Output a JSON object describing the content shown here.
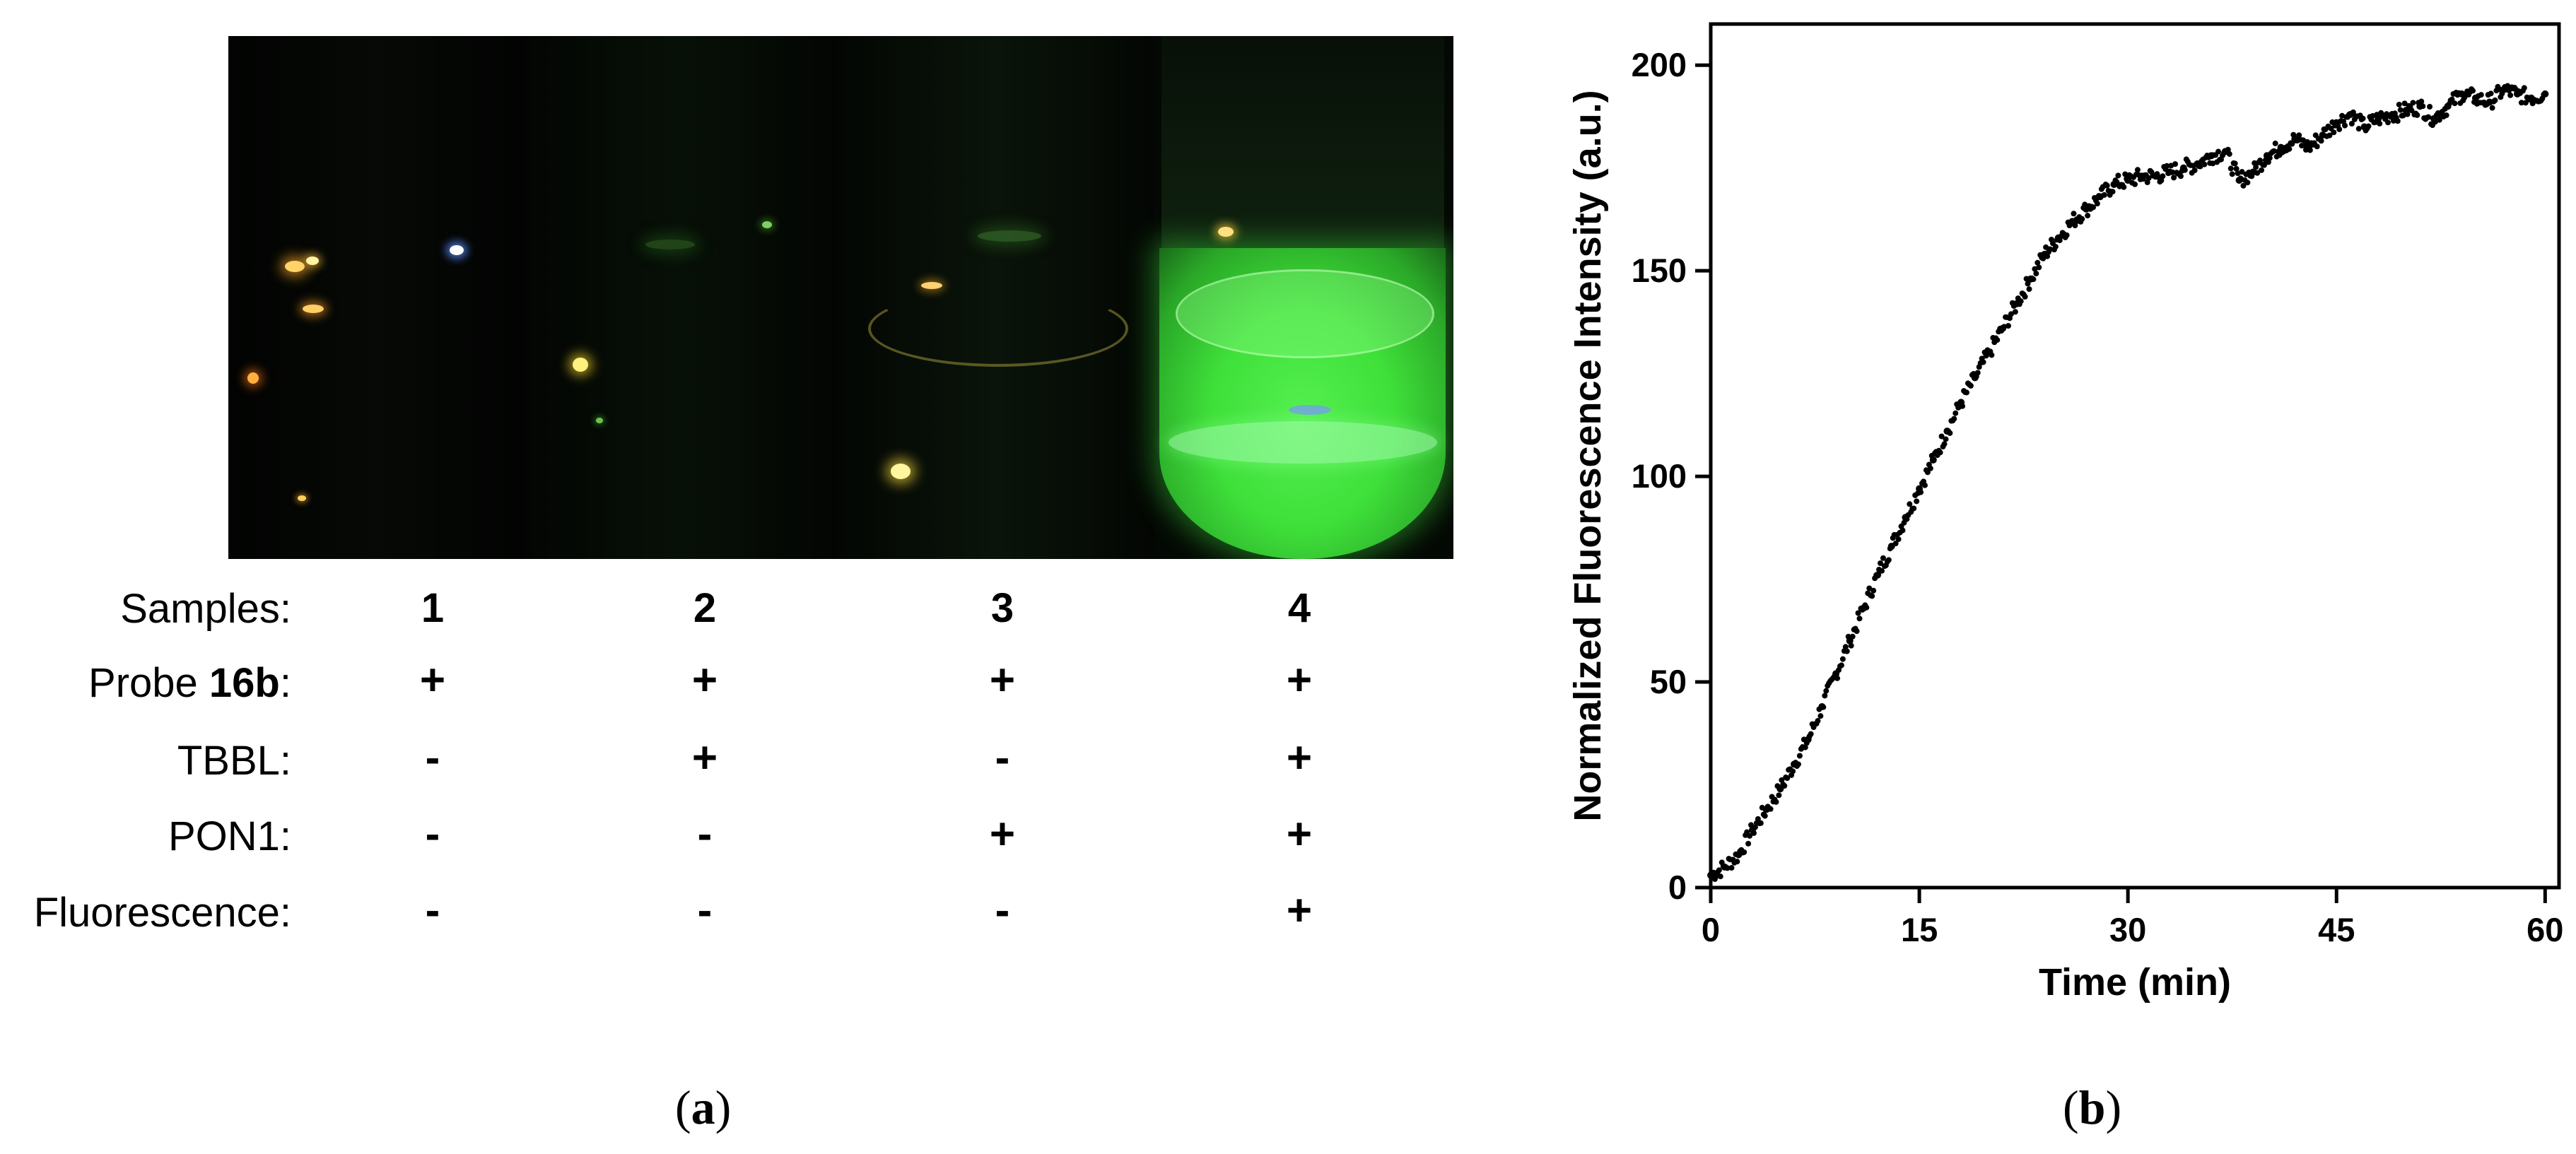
{
  "panel_a": {
    "table": {
      "rows": [
        {
          "label": "Samples:",
          "label_parts": [
            "Samples:"
          ],
          "values": [
            "1",
            "2",
            "3",
            "4"
          ]
        },
        {
          "label": "Probe 16b:",
          "label_parts": [
            "Probe ",
            "16b",
            ":"
          ],
          "values": [
            "+",
            "+",
            "+",
            "+"
          ]
        },
        {
          "label": "TBBL:",
          "label_parts": [
            "TBBL:"
          ],
          "values": [
            "-",
            "+",
            "-",
            "+"
          ]
        },
        {
          "label": "PON1:",
          "label_parts": [
            "PON1:"
          ],
          "values": [
            "-",
            "-",
            "+",
            "+"
          ]
        },
        {
          "label": "Fluorescence:",
          "label_parts": [
            "Fluorescence:"
          ],
          "values": [
            "-",
            "-",
            "-",
            "+"
          ]
        }
      ]
    },
    "caption": {
      "open": "(",
      "letter": "a",
      "close": ")"
    },
    "photo_colors": {
      "background": "#030603",
      "fluorescence": "#3fe03a"
    }
  },
  "panel_b": {
    "caption": {
      "open": "(",
      "letter": "b",
      "close": ")"
    }
  },
  "chart_data": {
    "type": "scatter",
    "title": "",
    "xlabel": "Time (min)",
    "ylabel": "Normalized Fluorescence Intensity (a.u.)",
    "xlim": [
      0,
      61
    ],
    "ylim": [
      0,
      210
    ],
    "xticks": [
      0,
      15,
      30,
      45,
      60
    ],
    "yticks": [
      0,
      50,
      100,
      150,
      200
    ],
    "grid": false,
    "series": [
      {
        "color": "#000000",
        "x": [
          0,
          1,
          2,
          3,
          4,
          5,
          6,
          7,
          8,
          9,
          10,
          11,
          12,
          13,
          14,
          15,
          16,
          17,
          18,
          19,
          20,
          21,
          22,
          23,
          24,
          25,
          26,
          27,
          28,
          29,
          30,
          31,
          32,
          33,
          34,
          35,
          36,
          37,
          38,
          39,
          40,
          41,
          42,
          43,
          44,
          45,
          46,
          47,
          48,
          49,
          50,
          51,
          52,
          53,
          54,
          55,
          56,
          57,
          58,
          59,
          60
        ],
        "y": [
          3,
          5,
          8,
          14,
          19,
          24,
          30,
          36,
          44,
          52,
          60,
          68,
          76,
          83,
          90,
          97,
          104,
          111,
          118,
          124,
          130,
          136,
          142,
          148,
          154,
          158,
          162,
          165,
          168,
          171,
          172,
          173,
          173,
          174,
          175,
          176,
          178,
          179,
          172,
          174,
          178,
          180,
          182,
          180,
          183,
          186,
          188,
          185,
          187,
          188,
          189,
          190,
          187,
          190,
          193,
          192,
          191,
          194,
          193,
          192,
          193
        ]
      }
    ]
  }
}
